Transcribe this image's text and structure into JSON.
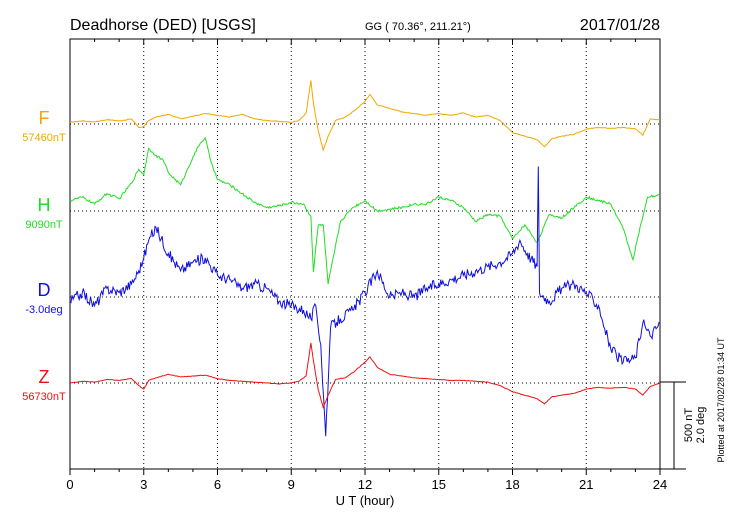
{
  "header": {
    "station": "Deadhorse (DED)  [USGS]",
    "coords": "GG ( 70.36°, 211.21°)",
    "date": "2017/01/28"
  },
  "side_note": "Plotted at 2017/02/28 01:34 UT",
  "scale_bar": {
    "value": "500 nT",
    "deg": "2.0 deg"
  },
  "chart_data": {
    "type": "line",
    "xlabel": "U T (hour)",
    "xlim": [
      0,
      24
    ],
    "xticks": [
      "0",
      "3",
      "6",
      "9",
      "12",
      "15",
      "18",
      "21",
      "24"
    ],
    "x_tick_values": [
      0,
      3,
      6,
      9,
      12,
      15,
      18,
      21,
      24
    ],
    "grid": true,
    "series": [
      {
        "name": "F",
        "baseline": "57460nT",
        "color": "#f0a800",
        "unit": "nT",
        "x": [
          0,
          0.5,
          1,
          1.5,
          2,
          2.5,
          2.8,
          3,
          3.2,
          3.5,
          4,
          4.5,
          5,
          5.5,
          6,
          6.5,
          7,
          7.5,
          8,
          8.5,
          9,
          9.3,
          9.6,
          9.8,
          9.9,
          10.1,
          10.3,
          10.5,
          10.8,
          11.2,
          11.6,
          12,
          12.2,
          12.5,
          13,
          13.5,
          14,
          14.5,
          15,
          15.5,
          16,
          16.5,
          17,
          17.5,
          18,
          18.5,
          19,
          19.3,
          19.6,
          20,
          20.5,
          21,
          21.5,
          22,
          22.5,
          23,
          23.3,
          23.6,
          24
        ],
        "y": [
          10,
          18,
          12,
          25,
          18,
          28,
          -20,
          -15,
          20,
          40,
          55,
          30,
          45,
          60,
          50,
          40,
          55,
          30,
          20,
          15,
          10,
          20,
          60,
          250,
          120,
          -40,
          -150,
          -70,
          20,
          40,
          80,
          130,
          170,
          110,
          90,
          70,
          60,
          50,
          60,
          50,
          65,
          40,
          50,
          20,
          -50,
          -70,
          -90,
          -130,
          -85,
          -70,
          -60,
          -30,
          -20,
          -25,
          -20,
          -28,
          -65,
          30,
          25
        ]
      },
      {
        "name": "H",
        "baseline": "9090nT",
        "color": "#22dd22",
        "unit": "nT",
        "x": [
          0,
          0.5,
          1,
          1.5,
          2,
          2.5,
          2.8,
          3,
          3.2,
          3.5,
          3.8,
          4,
          4.5,
          5,
          5.3,
          5.5,
          5.7,
          6,
          6.5,
          7,
          7.5,
          8,
          8.5,
          9,
          9.5,
          9.8,
          9.9,
          10.1,
          10.3,
          10.5,
          11,
          11.5,
          12,
          12.5,
          13,
          13.5,
          14,
          14.5,
          15,
          15.5,
          16,
          16.5,
          17,
          17.5,
          18,
          18.5,
          19,
          19.5,
          20,
          20.5,
          21,
          21.5,
          22,
          22.5,
          22.9,
          23.1,
          23.5,
          24
        ],
        "y": [
          60,
          80,
          40,
          100,
          70,
          160,
          240,
          210,
          360,
          320,
          290,
          220,
          150,
          310,
          390,
          420,
          300,
          180,
          150,
          100,
          50,
          20,
          30,
          50,
          40,
          -30,
          -350,
          -80,
          -80,
          -420,
          -60,
          20,
          60,
          0,
          10,
          20,
          40,
          40,
          80,
          60,
          20,
          -60,
          -20,
          -30,
          -160,
          -80,
          -180,
          -20,
          -40,
          20,
          80,
          60,
          40,
          -100,
          -280,
          -150,
          80,
          90
        ]
      },
      {
        "name": "D",
        "baseline": "-3.0deg",
        "color": "#1010dd",
        "unit": "deg",
        "x": [
          0,
          0.5,
          1,
          1.5,
          2,
          2.5,
          2.8,
          3,
          3.2,
          3.5,
          4,
          4.5,
          5,
          5.5,
          6,
          6.5,
          7,
          7.5,
          8,
          8.5,
          9,
          9.5,
          9.8,
          10,
          10.2,
          10.4,
          10.6,
          11,
          11.5,
          12,
          12.5,
          13,
          13.5,
          14,
          14.5,
          15,
          15.5,
          16,
          16.5,
          17,
          17.5,
          18,
          18.3,
          18.6,
          19,
          19.05,
          19.1,
          19.5,
          20,
          20.5,
          21,
          21.5,
          22,
          22.5,
          23,
          23.3,
          23.6,
          24
        ],
        "y": [
          -0.1,
          0.1,
          -0.2,
          0.2,
          0.1,
          0.3,
          0.6,
          0.9,
          1.3,
          1.6,
          1.0,
          0.6,
          0.8,
          0.9,
          0.5,
          0.4,
          0.2,
          0.3,
          0.2,
          -0.1,
          -0.2,
          -0.3,
          -0.5,
          -0.2,
          -1.1,
          -3.2,
          -0.7,
          -0.5,
          -0.3,
          0.1,
          0.6,
          0.0,
          0.1,
          0.0,
          0.2,
          0.3,
          0.4,
          0.5,
          0.6,
          0.7,
          0.8,
          1.0,
          1.3,
          1.0,
          0.7,
          3.0,
          0.1,
          -0.1,
          0.2,
          0.3,
          0.1,
          -0.2,
          -1.2,
          -1.5,
          -1.4,
          -0.6,
          -0.9,
          -0.6
        ]
      },
      {
        "name": "Z",
        "baseline": "56730nT",
        "color": "#ee1111",
        "unit": "nT",
        "x": [
          0,
          0.5,
          1,
          1.5,
          2,
          2.5,
          2.8,
          3,
          3.2,
          3.5,
          4,
          4.5,
          5,
          5.5,
          6,
          6.5,
          7,
          7.5,
          8,
          8.5,
          9,
          9.3,
          9.6,
          9.8,
          9.9,
          10.1,
          10.3,
          10.5,
          10.8,
          11.2,
          11.6,
          12,
          12.2,
          12.5,
          13,
          13.5,
          14,
          14.5,
          15,
          15.5,
          16,
          16.5,
          17,
          17.5,
          18,
          18.5,
          19,
          19.3,
          19.6,
          20,
          20.5,
          21,
          21.5,
          22,
          22.5,
          23,
          23.3,
          23.6,
          24
        ],
        "y": [
          0,
          10,
          5,
          20,
          15,
          25,
          -15,
          -35,
          15,
          30,
          50,
          35,
          40,
          45,
          25,
          15,
          10,
          5,
          0,
          -5,
          0,
          10,
          40,
          230,
          130,
          -40,
          -140,
          -70,
          20,
          30,
          70,
          120,
          150,
          90,
          50,
          40,
          30,
          25,
          20,
          15,
          15,
          10,
          5,
          -15,
          -50,
          -70,
          -90,
          -120,
          -80,
          -70,
          -60,
          -35,
          -25,
          -30,
          -25,
          -35,
          -70,
          -20,
          0
        ]
      }
    ]
  }
}
